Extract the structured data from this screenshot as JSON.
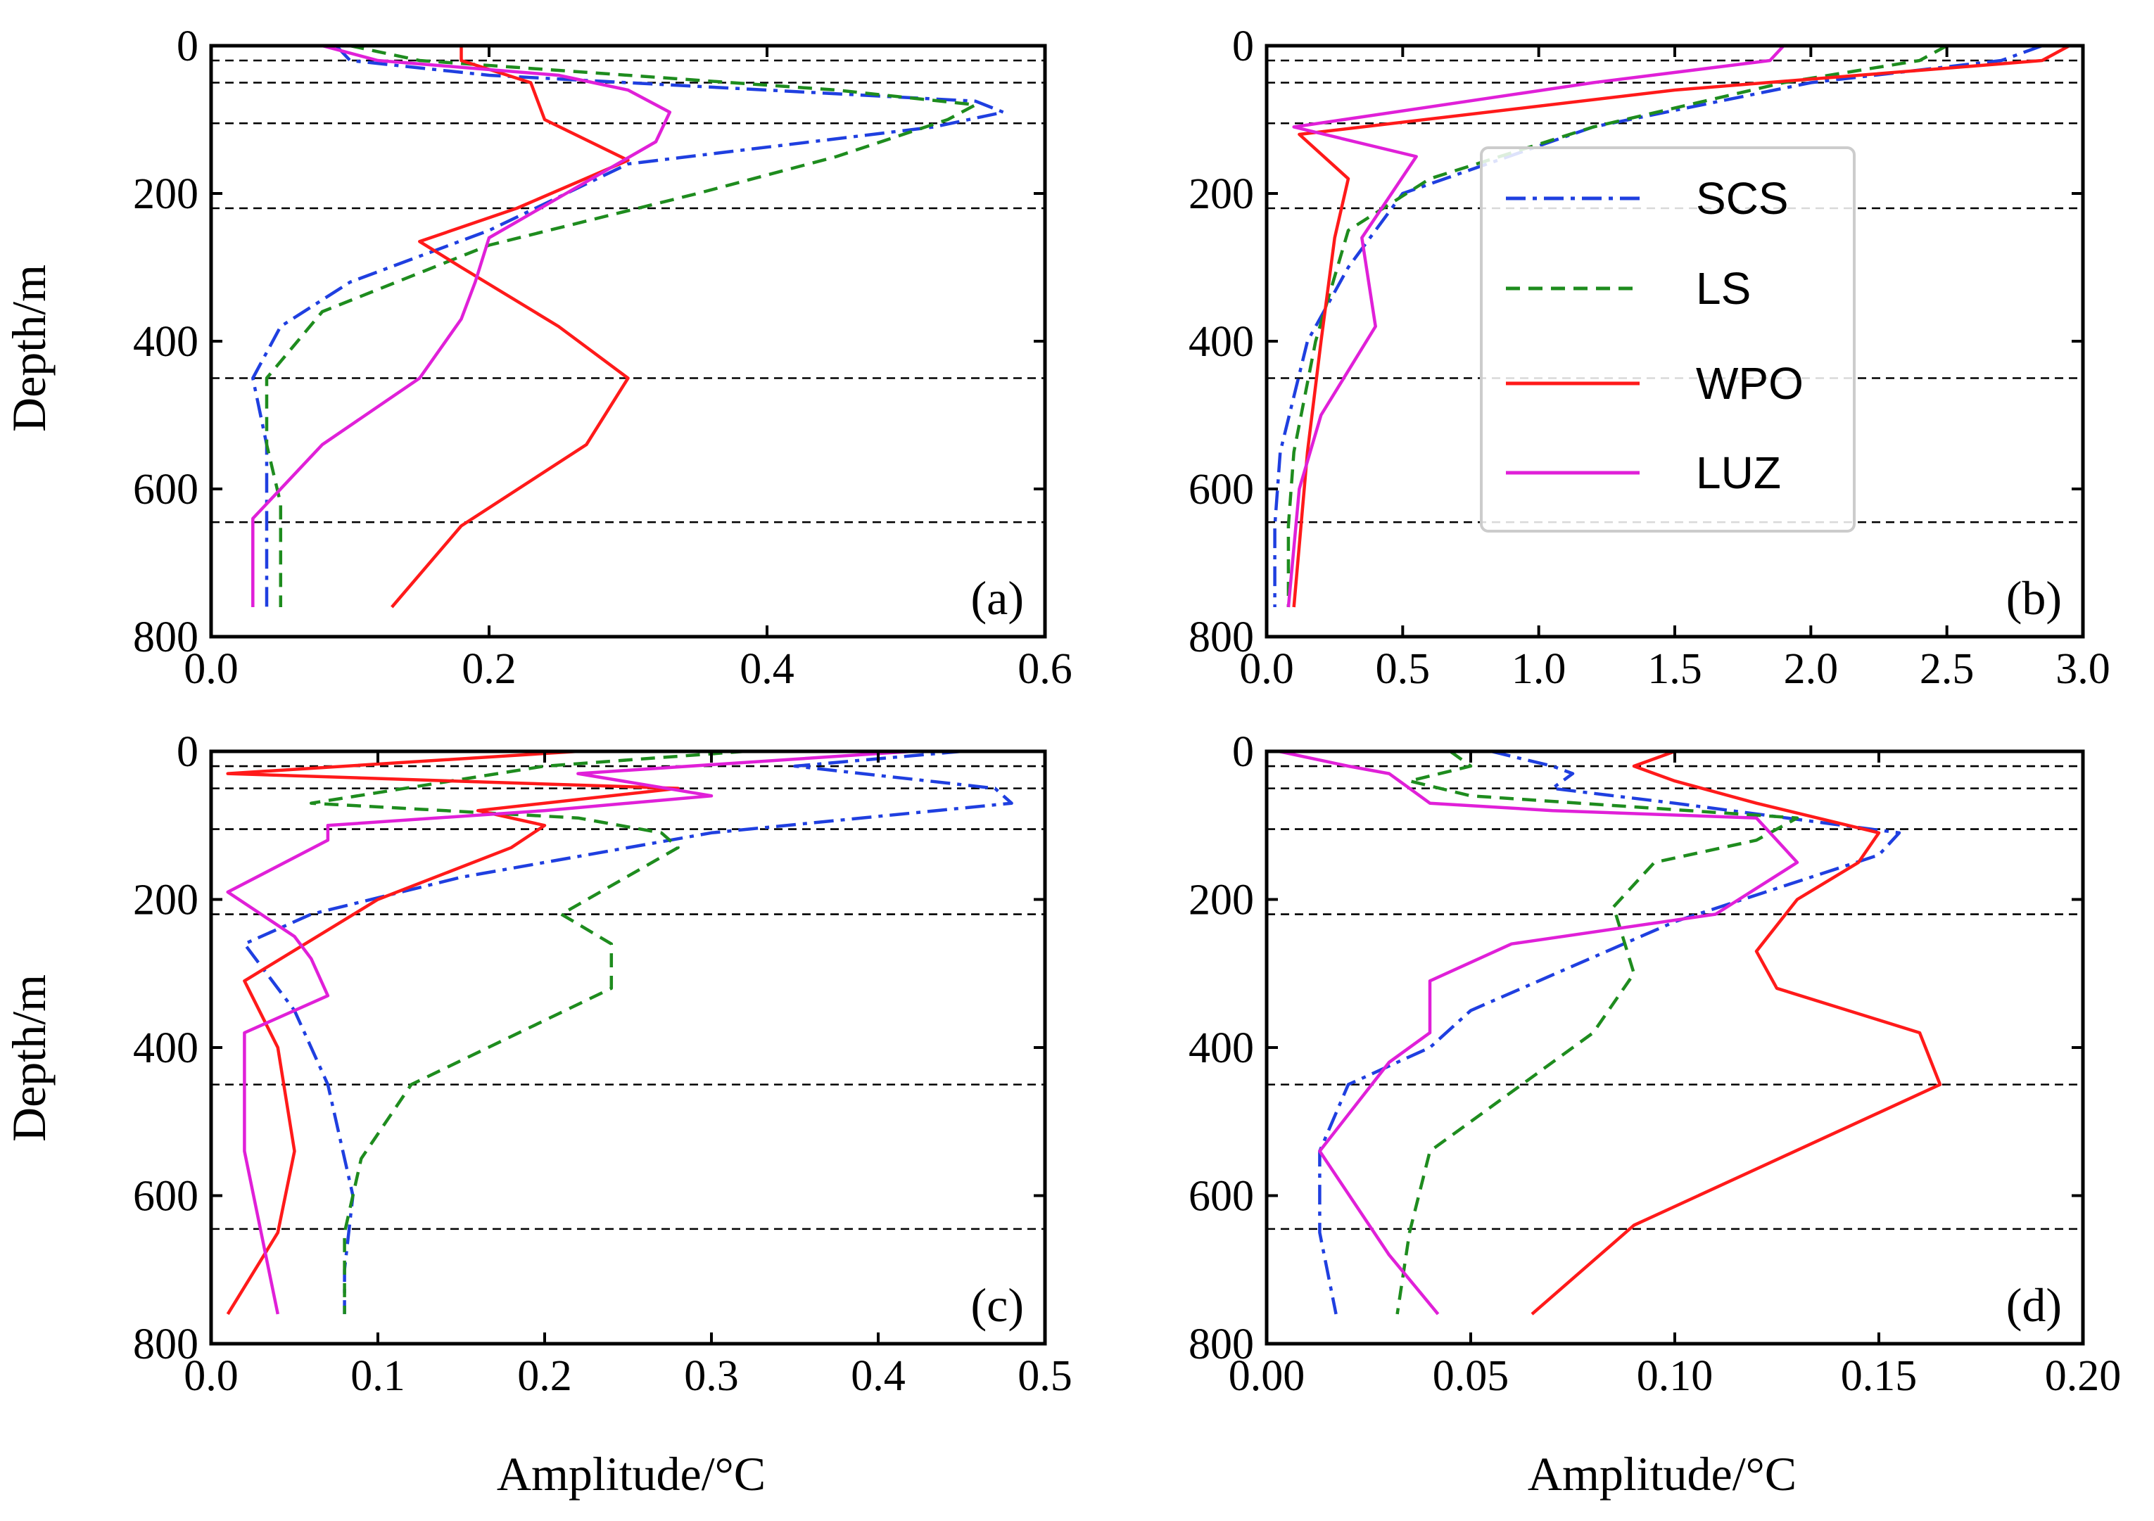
{
  "figure": {
    "xlabel": "Amplitude/°C",
    "ylabel": "Depth/m"
  },
  "legend": {
    "entries": [
      {
        "name": "SCS",
        "color": "#1f3fe0",
        "style": "dashdot"
      },
      {
        "name": "LS",
        "color": "#1e8c1e",
        "style": "dashed"
      },
      {
        "name": "WPO",
        "color": "#ff1a1a",
        "style": "solid"
      },
      {
        "name": "LUZ",
        "color": "#e020d8",
        "style": "solid"
      }
    ]
  },
  "chart_data": [
    {
      "type": "line",
      "panel_label": "(a)",
      "xlim": [
        0,
        0.6
      ],
      "ylim": [
        800,
        0
      ],
      "xticks": [
        0.0,
        0.2,
        0.4,
        0.6
      ],
      "xtick_labels": [
        "0.0",
        "0.2",
        "0.4",
        "0.6"
      ],
      "yticks": [
        0,
        200,
        400,
        600,
        800
      ],
      "ytick_labels": [
        "0",
        "200",
        "400",
        "600",
        "800"
      ],
      "layer_depths": [
        20,
        50,
        105,
        220,
        450,
        645
      ],
      "series": [
        {
          "name": "SCS",
          "x": [
            0.09,
            0.1,
            0.2,
            0.4,
            0.55,
            0.57,
            0.52,
            0.3,
            0.2,
            0.1,
            0.05,
            0.03,
            0.04,
            0.04,
            0.04,
            0.04
          ],
          "depth": [
            0,
            20,
            40,
            60,
            75,
            90,
            110,
            160,
            250,
            320,
            380,
            450,
            540,
            600,
            645,
            760
          ]
        },
        {
          "name": "LS",
          "x": [
            0.1,
            0.15,
            0.3,
            0.45,
            0.55,
            0.53,
            0.45,
            0.35,
            0.2,
            0.08,
            0.04,
            0.04,
            0.05,
            0.05,
            0.05
          ],
          "depth": [
            0,
            20,
            40,
            60,
            80,
            100,
            150,
            200,
            270,
            360,
            450,
            540,
            620,
            690,
            760
          ]
        },
        {
          "name": "WPO",
          "x": [
            0.18,
            0.18,
            0.23,
            0.24,
            0.3,
            0.22,
            0.15,
            0.18,
            0.25,
            0.3,
            0.27,
            0.18,
            0.13
          ],
          "depth": [
            0,
            20,
            50,
            100,
            155,
            220,
            265,
            300,
            380,
            450,
            540,
            650,
            760
          ]
        },
        {
          "name": "LUZ",
          "x": [
            0.08,
            0.12,
            0.25,
            0.3,
            0.33,
            0.32,
            0.2,
            0.19,
            0.18,
            0.15,
            0.08,
            0.03,
            0.03
          ],
          "depth": [
            0,
            20,
            40,
            60,
            90,
            130,
            260,
            320,
            370,
            450,
            540,
            640,
            760
          ]
        }
      ]
    },
    {
      "type": "line",
      "panel_label": "(b)",
      "xlim": [
        0,
        3.0
      ],
      "ylim": [
        800,
        0
      ],
      "xticks": [
        0.0,
        0.5,
        1.0,
        1.5,
        2.0,
        2.5,
        3.0
      ],
      "xtick_labels": [
        "0.0",
        "0.5",
        "1.0",
        "1.5",
        "2.0",
        "2.5",
        "3.0"
      ],
      "yticks": [
        0,
        200,
        400,
        600,
        800
      ],
      "ytick_labels": [
        "0",
        "200",
        "400",
        "600",
        "800"
      ],
      "layer_depths": [
        20,
        50,
        105,
        220,
        450,
        645
      ],
      "series": [
        {
          "name": "SCS",
          "x": [
            2.85,
            2.7,
            2.0,
            1.2,
            0.5,
            0.3,
            0.15,
            0.05,
            0.03,
            0.03
          ],
          "depth": [
            0,
            20,
            50,
            110,
            200,
            300,
            400,
            550,
            650,
            760
          ]
        },
        {
          "name": "LS",
          "x": [
            2.5,
            2.4,
            1.9,
            1.2,
            0.6,
            0.3,
            0.18,
            0.1,
            0.08,
            0.08
          ],
          "depth": [
            0,
            20,
            50,
            110,
            180,
            250,
            400,
            550,
            650,
            760
          ]
        },
        {
          "name": "WPO",
          "x": [
            2.95,
            2.85,
            1.5,
            0.12,
            0.3,
            0.25,
            0.2,
            0.15,
            0.1
          ],
          "depth": [
            0,
            20,
            60,
            120,
            180,
            260,
            400,
            550,
            760
          ]
        },
        {
          "name": "LUZ",
          "x": [
            1.9,
            1.85,
            1.2,
            0.1,
            0.55,
            0.35,
            0.4,
            0.2,
            0.12,
            0.08
          ],
          "depth": [
            0,
            20,
            50,
            110,
            150,
            260,
            380,
            500,
            600,
            760
          ]
        }
      ]
    },
    {
      "type": "line",
      "panel_label": "(c)",
      "xlim": [
        0,
        0.5
      ],
      "ylim": [
        800,
        0
      ],
      "xticks": [
        0.0,
        0.1,
        0.2,
        0.3,
        0.4,
        0.5
      ],
      "xtick_labels": [
        "0.0",
        "0.1",
        "0.2",
        "0.3",
        "0.4",
        "0.5"
      ],
      "yticks": [
        0,
        200,
        400,
        600,
        800
      ],
      "ytick_labels": [
        "0",
        "200",
        "400",
        "600",
        "800"
      ],
      "layer_depths": [
        20,
        50,
        105,
        220,
        450,
        645
      ],
      "series": [
        {
          "name": "SCS",
          "x": [
            0.45,
            0.35,
            0.47,
            0.48,
            0.3,
            0.15,
            0.06,
            0.02,
            0.05,
            0.07,
            0.085,
            0.08,
            0.08
          ],
          "depth": [
            0,
            20,
            50,
            70,
            110,
            170,
            220,
            260,
            350,
            450,
            600,
            700,
            760
          ]
        },
        {
          "name": "LS",
          "x": [
            0.32,
            0.2,
            0.06,
            0.22,
            0.27,
            0.28,
            0.21,
            0.24,
            0.24,
            0.12,
            0.09,
            0.08,
            0.08
          ],
          "depth": [
            0,
            20,
            70,
            90,
            110,
            130,
            220,
            260,
            320,
            450,
            550,
            650,
            760
          ]
        },
        {
          "name": "WPO",
          "x": [
            0.22,
            0.01,
            0.28,
            0.16,
            0.2,
            0.18,
            0.1,
            0.02,
            0.04,
            0.05,
            0.04,
            0.01
          ],
          "depth": [
            0,
            30,
            50,
            80,
            100,
            130,
            200,
            310,
            400,
            540,
            650,
            760
          ]
        },
        {
          "name": "LUZ",
          "x": [
            0.42,
            0.22,
            0.3,
            0.2,
            0.07,
            0.07,
            0.01,
            0.05,
            0.06,
            0.07,
            0.02,
            0.02,
            0.04
          ],
          "depth": [
            0,
            30,
            60,
            80,
            100,
            120,
            190,
            250,
            280,
            330,
            380,
            540,
            760
          ]
        }
      ]
    },
    {
      "type": "line",
      "panel_label": "(d)",
      "xlim": [
        0,
        0.2
      ],
      "ylim": [
        800,
        0
      ],
      "xticks": [
        0.0,
        0.05,
        0.1,
        0.15,
        0.2
      ],
      "xtick_labels": [
        "0.00",
        "0.05",
        "0.10",
        "0.15",
        "0.20"
      ],
      "yticks": [
        0,
        200,
        400,
        600,
        800
      ],
      "ytick_labels": [
        "0",
        "200",
        "400",
        "600",
        "800"
      ],
      "layer_depths": [
        20,
        50,
        105,
        220,
        450,
        645
      ],
      "series": [
        {
          "name": "SCS",
          "x": [
            0.055,
            0.07,
            0.075,
            0.07,
            0.1,
            0.155,
            0.15,
            0.1,
            0.05,
            0.04,
            0.02,
            0.013,
            0.013,
            0.017
          ],
          "depth": [
            0,
            20,
            30,
            50,
            70,
            110,
            140,
            230,
            350,
            400,
            450,
            540,
            650,
            760
          ]
        },
        {
          "name": "LS",
          "x": [
            0.045,
            0.05,
            0.035,
            0.05,
            0.13,
            0.12,
            0.095,
            0.085,
            0.09,
            0.08,
            0.05,
            0.04,
            0.035,
            0.032
          ],
          "depth": [
            0,
            20,
            40,
            60,
            90,
            120,
            150,
            210,
            300,
            380,
            500,
            540,
            650,
            760
          ]
        },
        {
          "name": "WPO",
          "x": [
            0.1,
            0.09,
            0.1,
            0.12,
            0.15,
            0.145,
            0.13,
            0.12,
            0.125,
            0.16,
            0.165,
            0.09,
            0.065
          ],
          "depth": [
            0,
            20,
            40,
            70,
            110,
            150,
            200,
            270,
            320,
            380,
            450,
            640,
            760
          ]
        },
        {
          "name": "LUZ",
          "x": [
            0.003,
            0.02,
            0.03,
            0.035,
            0.04,
            0.07,
            0.12,
            0.13,
            0.11,
            0.06,
            0.04,
            0.04,
            0.03,
            0.013,
            0.03,
            0.042
          ],
          "depth": [
            0,
            20,
            30,
            50,
            70,
            80,
            90,
            150,
            220,
            260,
            310,
            380,
            420,
            540,
            680,
            760
          ]
        }
      ]
    }
  ]
}
